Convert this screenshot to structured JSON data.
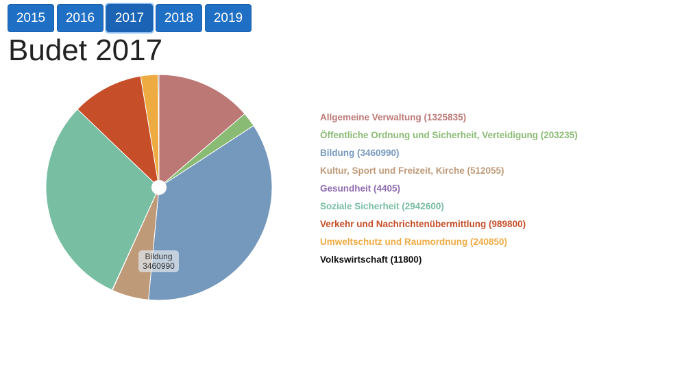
{
  "years": [
    "2015",
    "2016",
    "2017",
    "2018",
    "2019"
  ],
  "active_year": "2017",
  "title": "Budet 2017",
  "tooltip": {
    "label": "Bildung",
    "value": "3460990"
  },
  "chart_data": {
    "type": "pie",
    "title": "Budet 2017",
    "slices": [
      {
        "label": "Allgemeine Verwaltung",
        "value": 1325835,
        "color": "#bb7875"
      },
      {
        "label": "Öffentliche Ordnung und Sicherheit, Verteidigung",
        "value": 203235,
        "color": "#8abb74"
      },
      {
        "label": "Bildung",
        "value": 3460990,
        "color": "#7598bd"
      },
      {
        "label": "Kultur, Sport und Freizeit, Kirche",
        "value": 512055,
        "color": "#bf9a78"
      },
      {
        "label": "Gesundheit",
        "value": 4405,
        "color": "#8f6bb0"
      },
      {
        "label": "Soziale Sicherheit",
        "value": 2942600,
        "color": "#78bea3"
      },
      {
        "label": "Verkehr und Nachrichtenübermittlung",
        "value": 989800,
        "color": "#c64e29"
      },
      {
        "label": "Umweltschutz und Raumordnung",
        "value": 240850,
        "color": "#eeab42"
      },
      {
        "label": "Volkswirtschaft",
        "value": 11800,
        "color": "#111111"
      }
    ],
    "legend_labels": [
      "Allgemeine Verwaltung (1325835)",
      "Öffentliche Ordnung und Sicherheit, Verteidigung (203235)",
      "Bildung (3460990)",
      "Kultur, Sport und Freizeit, Kirche (512055)",
      "Gesundheit (4405)",
      "Soziale Sicherheit (2942600)",
      "Verkehr und Nachrichtenübermittlung (989800)",
      "Umweltschutz und Raumordnung (240850)",
      "Volkswirtschaft (11800)"
    ],
    "legend_placement": "right"
  }
}
